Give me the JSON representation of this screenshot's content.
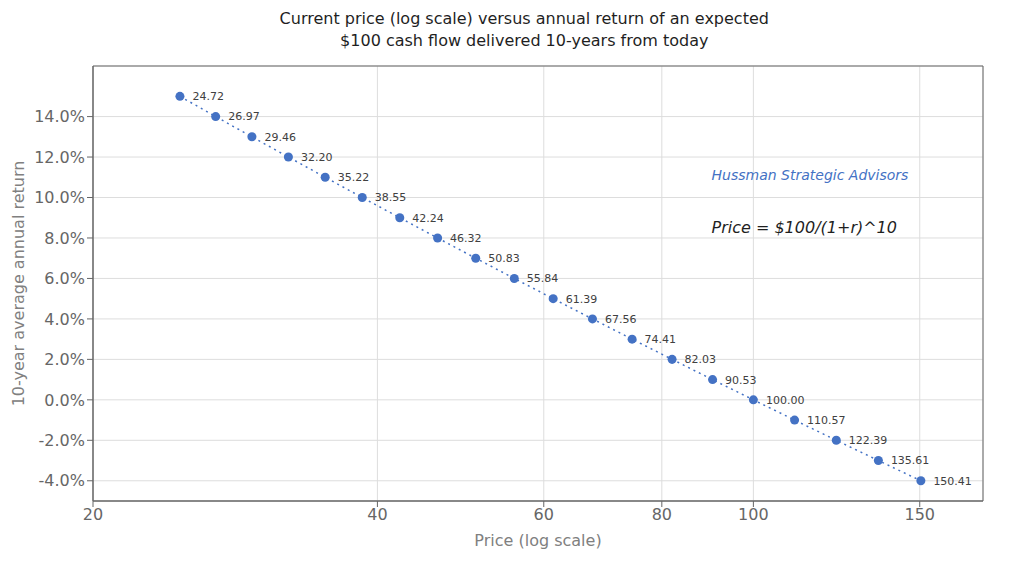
{
  "chart_data": {
    "type": "scatter",
    "title": "Current price (log scale) versus annual return of an expected\n$100 cash flow delivered 10-years from today",
    "x_label": "Price (log scale)",
    "y_label": "10-year average annual return",
    "annotations": [
      "Hussman Strategic Advisors",
      "Price = $100/(1+r)^10"
    ],
    "x": [
      24.72,
      26.97,
      29.46,
      32.2,
      35.22,
      38.55,
      42.24,
      46.32,
      50.83,
      55.84,
      61.39,
      67.56,
      74.41,
      82.03,
      90.53,
      100.0,
      110.57,
      122.39,
      135.61,
      150.41
    ],
    "values": [
      0.15,
      0.14,
      0.13,
      0.12,
      0.11,
      0.1,
      0.09,
      0.08,
      0.07,
      0.06,
      0.05,
      0.04,
      0.03,
      0.02,
      0.01,
      0.0,
      -0.01,
      -0.02,
      -0.03,
      -0.04
    ],
    "point_labels": [
      "24.72",
      "26.97",
      "29.46",
      "32.20",
      "35.22",
      "38.55",
      "42.24",
      "46.32",
      "50.83",
      "55.84",
      "61.39",
      "67.56",
      "74.41",
      "82.03",
      "90.53",
      "100.00",
      "110.57",
      "122.39",
      "135.61",
      "150.41"
    ],
    "color": "#4472c4",
    "marker": "circle",
    "line_style": "dotted",
    "log": "x",
    "grid": true,
    "xlim": [
      20,
      175
    ],
    "ylim": [
      -0.05,
      0.165
    ],
    "xticks": [
      20,
      40,
      60,
      80,
      100,
      150
    ],
    "yticks": [
      {
        "value": -0.04,
        "label": "-4.0%"
      },
      {
        "value": -0.02,
        "label": "-2.0%"
      },
      {
        "value": 0.0,
        "label": "0.0%"
      },
      {
        "value": 0.02,
        "label": "2.0%"
      },
      {
        "value": 0.04,
        "label": "4.0%"
      },
      {
        "value": 0.06,
        "label": "6.0%"
      },
      {
        "value": 0.08,
        "label": "8.0%"
      },
      {
        "value": 0.1,
        "label": "10.0%"
      },
      {
        "value": 0.12,
        "label": "12.0%"
      },
      {
        "value": 0.14,
        "label": "14.0%"
      }
    ]
  }
}
